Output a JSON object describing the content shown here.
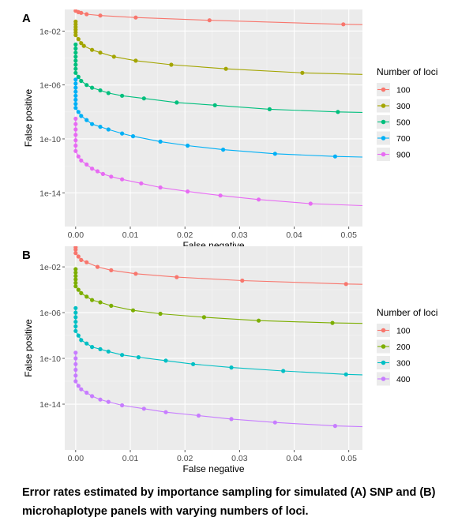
{
  "caption": "Error rates estimated by importance sampling for simulated (A) SNP and (B) microhaplotype panels with varying numbers of loci.",
  "chart_data": [
    {
      "panel": "A",
      "type": "line",
      "xlabel": "False negative",
      "ylabel": "False positive",
      "xlim": [
        -0.002,
        0.0525
      ],
      "xticks": [
        0.0,
        0.01,
        0.02,
        0.03,
        0.04,
        0.05
      ],
      "xtick_labels": [
        "0.00",
        "0.01",
        "0.02",
        "0.03",
        "0.04",
        "0.05"
      ],
      "yscale": "log",
      "ylim_log10": [
        -16.5,
        -0.4
      ],
      "yticks_log10": [
        -2,
        -6,
        -10,
        -14
      ],
      "ytick_labels": [
        "1e-02",
        "1e-06",
        "1e-10",
        "1e-14"
      ],
      "legend": {
        "title": "Number of loci",
        "placement": "right"
      },
      "series": [
        {
          "name": "100",
          "color": "#F8766D",
          "points": [
            [
              0.0,
              -0.5
            ],
            [
              0.0005,
              -0.6
            ],
            [
              0.001,
              -0.65
            ],
            [
              0.002,
              -0.75
            ],
            [
              0.0045,
              -0.85
            ],
            [
              0.011,
              -1.0
            ],
            [
              0.0245,
              -1.2
            ],
            [
              0.049,
              -1.5
            ]
          ]
        },
        {
          "name": "300",
          "color": "#A3A500",
          "points": [
            [
              0.0,
              -1.3
            ],
            [
              0.0,
              -1.5
            ],
            [
              0.0,
              -1.7
            ],
            [
              0.0,
              -1.9
            ],
            [
              0.0,
              -2.1
            ],
            [
              0.0,
              -2.3
            ],
            [
              0.0005,
              -2.6
            ],
            [
              0.001,
              -2.9
            ],
            [
              0.0015,
              -3.1
            ],
            [
              0.003,
              -3.4
            ],
            [
              0.0045,
              -3.6
            ],
            [
              0.007,
              -3.9
            ],
            [
              0.011,
              -4.2
            ],
            [
              0.0175,
              -4.5
            ],
            [
              0.0275,
              -4.8
            ],
            [
              0.0415,
              -5.1
            ]
          ]
        },
        {
          "name": "500",
          "color": "#00BF7D",
          "points": [
            [
              0.0,
              -3.0
            ],
            [
              0.0,
              -3.3
            ],
            [
              0.0,
              -3.6
            ],
            [
              0.0,
              -3.9
            ],
            [
              0.0,
              -4.2
            ],
            [
              0.0,
              -4.5
            ],
            [
              0.0,
              -4.8
            ],
            [
              0.0,
              -5.1
            ],
            [
              0.0005,
              -5.4
            ],
            [
              0.001,
              -5.7
            ],
            [
              0.002,
              -6.0
            ],
            [
              0.003,
              -6.2
            ],
            [
              0.0045,
              -6.4
            ],
            [
              0.006,
              -6.6
            ],
            [
              0.0085,
              -6.8
            ],
            [
              0.0125,
              -7.0
            ],
            [
              0.0185,
              -7.3
            ],
            [
              0.0255,
              -7.5
            ],
            [
              0.0355,
              -7.8
            ],
            [
              0.048,
              -8.0
            ]
          ]
        },
        {
          "name": "700",
          "color": "#00B0F6",
          "points": [
            [
              0.0,
              -5.6
            ],
            [
              0.0,
              -5.9
            ],
            [
              0.0,
              -6.2
            ],
            [
              0.0,
              -6.5
            ],
            [
              0.0,
              -6.8
            ],
            [
              0.0,
              -7.1
            ],
            [
              0.0,
              -7.4
            ],
            [
              0.0,
              -7.7
            ],
            [
              0.0005,
              -8.0
            ],
            [
              0.001,
              -8.3
            ],
            [
              0.002,
              -8.6
            ],
            [
              0.003,
              -8.9
            ],
            [
              0.0045,
              -9.1
            ],
            [
              0.006,
              -9.3
            ],
            [
              0.0085,
              -9.6
            ],
            [
              0.0105,
              -9.8
            ],
            [
              0.0155,
              -10.2
            ],
            [
              0.0205,
              -10.5
            ],
            [
              0.027,
              -10.8
            ],
            [
              0.0365,
              -11.1
            ],
            [
              0.0475,
              -11.3
            ]
          ]
        },
        {
          "name": "900",
          "color": "#E76BF3",
          "points": [
            [
              0.0,
              -8.5
            ],
            [
              0.0,
              -8.9
            ],
            [
              0.0,
              -9.3
            ],
            [
              0.0,
              -9.7
            ],
            [
              0.0,
              -10.1
            ],
            [
              0.0,
              -10.5
            ],
            [
              0.0,
              -10.9
            ],
            [
              0.0005,
              -11.3
            ],
            [
              0.001,
              -11.6
            ],
            [
              0.002,
              -11.9
            ],
            [
              0.003,
              -12.2
            ],
            [
              0.004,
              -12.4
            ],
            [
              0.005,
              -12.6
            ],
            [
              0.0065,
              -12.8
            ],
            [
              0.0085,
              -13.0
            ],
            [
              0.012,
              -13.3
            ],
            [
              0.0155,
              -13.6
            ],
            [
              0.0205,
              -13.9
            ],
            [
              0.0265,
              -14.2
            ],
            [
              0.0335,
              -14.5
            ],
            [
              0.043,
              -14.8
            ]
          ]
        }
      ]
    },
    {
      "panel": "B",
      "type": "line",
      "xlabel": "False negative",
      "ylabel": "False positive",
      "xlim": [
        -0.002,
        0.0525
      ],
      "xticks": [
        0.0,
        0.01,
        0.02,
        0.03,
        0.04,
        0.05
      ],
      "xtick_labels": [
        "0.00",
        "0.01",
        "0.02",
        "0.03",
        "0.04",
        "0.05"
      ],
      "yscale": "log",
      "ylim_log10": [
        -18.0,
        -0.2
      ],
      "yticks_log10": [
        -2,
        -6,
        -10,
        -14
      ],
      "ytick_labels": [
        "1e-02",
        "1e-06",
        "1e-10",
        "1e-14"
      ],
      "legend": {
        "title": "Number of loci",
        "placement": "right"
      },
      "series": [
        {
          "name": "100",
          "color": "#F8766D",
          "points": [
            [
              0.0,
              -0.3
            ],
            [
              0.0,
              -0.5
            ],
            [
              0.0,
              -0.8
            ],
            [
              0.0005,
              -1.1
            ],
            [
              0.001,
              -1.4
            ],
            [
              0.002,
              -1.6
            ],
            [
              0.004,
              -2.0
            ],
            [
              0.0065,
              -2.3
            ],
            [
              0.011,
              -2.6
            ],
            [
              0.0185,
              -2.9
            ],
            [
              0.0305,
              -3.2
            ],
            [
              0.0495,
              -3.5
            ]
          ]
        },
        {
          "name": "200",
          "color": "#7CAE00",
          "points": [
            [
              0.0,
              -2.2
            ],
            [
              0.0,
              -2.5
            ],
            [
              0.0,
              -2.8
            ],
            [
              0.0,
              -3.1
            ],
            [
              0.0,
              -3.4
            ],
            [
              0.0,
              -3.7
            ],
            [
              0.0005,
              -4.0
            ],
            [
              0.001,
              -4.3
            ],
            [
              0.002,
              -4.6
            ],
            [
              0.003,
              -4.9
            ],
            [
              0.0045,
              -5.1
            ],
            [
              0.0065,
              -5.4
            ],
            [
              0.0105,
              -5.8
            ],
            [
              0.0155,
              -6.1
            ],
            [
              0.0235,
              -6.4
            ],
            [
              0.0335,
              -6.7
            ],
            [
              0.047,
              -6.9
            ]
          ]
        },
        {
          "name": "300",
          "color": "#00BFC4",
          "points": [
            [
              0.0,
              -5.6
            ],
            [
              0.0,
              -6.0
            ],
            [
              0.0,
              -6.4
            ],
            [
              0.0,
              -6.8
            ],
            [
              0.0,
              -7.2
            ],
            [
              0.0,
              -7.6
            ],
            [
              0.0005,
              -8.0
            ],
            [
              0.001,
              -8.4
            ],
            [
              0.002,
              -8.7
            ],
            [
              0.003,
              -9.0
            ],
            [
              0.0045,
              -9.2
            ],
            [
              0.006,
              -9.4
            ],
            [
              0.0085,
              -9.7
            ],
            [
              0.0115,
              -9.9
            ],
            [
              0.0165,
              -10.2
            ],
            [
              0.0215,
              -10.5
            ],
            [
              0.0285,
              -10.8
            ],
            [
              0.038,
              -11.1
            ],
            [
              0.0495,
              -11.4
            ]
          ]
        },
        {
          "name": "400",
          "color": "#C77CFF",
          "points": [
            [
              0.0,
              -9.5
            ],
            [
              0.0,
              -10.0
            ],
            [
              0.0,
              -10.5
            ],
            [
              0.0,
              -11.0
            ],
            [
              0.0,
              -11.5
            ],
            [
              0.0,
              -12.0
            ],
            [
              0.0005,
              -12.4
            ],
            [
              0.001,
              -12.7
            ],
            [
              0.002,
              -13.0
            ],
            [
              0.003,
              -13.3
            ],
            [
              0.0045,
              -13.6
            ],
            [
              0.006,
              -13.8
            ],
            [
              0.0085,
              -14.1
            ],
            [
              0.0125,
              -14.4
            ],
            [
              0.0165,
              -14.7
            ],
            [
              0.0225,
              -15.0
            ],
            [
              0.0285,
              -15.3
            ],
            [
              0.0365,
              -15.6
            ],
            [
              0.0475,
              -15.9
            ]
          ]
        }
      ]
    }
  ]
}
